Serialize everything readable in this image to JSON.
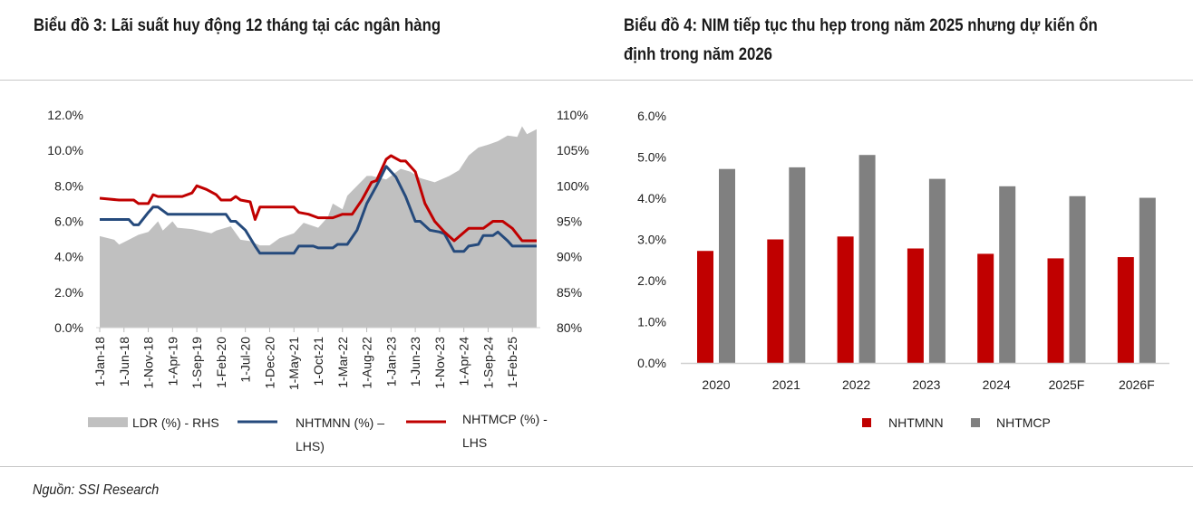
{
  "left_title": "Biểu đồ 3: Lãi suất huy động 12 tháng tại các ngân hàng",
  "right_title_line1": "Biểu đồ 4: NIM tiếp tục thu hẹp trong năm 2025 nhưng dự kiến ổn",
  "right_title_line2": "định trong năm 2026",
  "source": "Nguồn: SSI Research",
  "chart_data": [
    {
      "type": "line",
      "title": "Biểu đồ 3: Lãi suất huy động 12 tháng tại các ngân hàng",
      "x_tick_labels": [
        "1-Jan-18",
        "1-Jun-18",
        "1-Nov-18",
        "1-Apr-19",
        "1-Sep-19",
        "1-Feb-20",
        "1-Jul-20",
        "1-Dec-20",
        "1-May-21",
        "1-Oct-21",
        "1-Mar-22",
        "1-Aug-22",
        "1-Jan-23",
        "1-Jun-23",
        "1-Nov-23",
        "1-Apr-24",
        "1-Sep-24",
        "1-Feb-25"
      ],
      "x_range": [
        "2018-01",
        "2025-07"
      ],
      "y_left": {
        "range": [
          0,
          12
        ],
        "ticks": [
          "0.0%",
          "2.0%",
          "4.0%",
          "6.0%",
          "8.0%",
          "10.0%",
          "12.0%"
        ]
      },
      "y_right": {
        "range": [
          80,
          110
        ],
        "ticks": [
          "80%",
          "85%",
          "90%",
          "95%",
          "100%",
          "105%",
          "110%"
        ]
      },
      "grid": false,
      "legend_position": "bottom",
      "series": [
        {
          "name": "LDR (%) - RHS",
          "legend_label": "LDR (%) - RHS",
          "axis": "right",
          "style": "area",
          "color": "#c0c0c0",
          "points": [
            [
              "2018-01",
              92.9
            ],
            [
              "2018-04",
              92.4
            ],
            [
              "2018-05",
              91.7
            ],
            [
              "2018-07",
              92.4
            ],
            [
              "2018-09",
              93.1
            ],
            [
              "2018-11",
              93.5
            ],
            [
              "2019-01",
              95.0
            ],
            [
              "2019-02",
              93.7
            ],
            [
              "2019-04",
              95.0
            ],
            [
              "2019-05",
              94.1
            ],
            [
              "2019-08",
              93.9
            ],
            [
              "2019-12",
              93.3
            ],
            [
              "2020-01",
              93.7
            ],
            [
              "2020-04",
              94.3
            ],
            [
              "2020-06",
              92.4
            ],
            [
              "2020-08",
              92.2
            ],
            [
              "2020-10",
              91.6
            ],
            [
              "2020-12",
              91.6
            ],
            [
              "2021-02",
              92.6
            ],
            [
              "2021-05",
              93.3
            ],
            [
              "2021-07",
              94.8
            ],
            [
              "2021-10",
              94.1
            ],
            [
              "2021-12",
              95.6
            ],
            [
              "2022-01",
              97.5
            ],
            [
              "2022-03",
              96.7
            ],
            [
              "2022-04",
              98.6
            ],
            [
              "2022-08",
              101.4
            ],
            [
              "2022-09",
              101.4
            ],
            [
              "2022-12",
              100.9
            ],
            [
              "2023-03",
              102.4
            ],
            [
              "2023-05",
              102.0
            ],
            [
              "2023-07",
              101.1
            ],
            [
              "2023-10",
              100.5
            ],
            [
              "2024-01",
              101.4
            ],
            [
              "2024-03",
              102.2
            ],
            [
              "2024-05",
              104.3
            ],
            [
              "2024-07",
              105.4
            ],
            [
              "2024-09",
              105.8
            ],
            [
              "2024-11",
              106.3
            ],
            [
              "2025-01",
              107.1
            ],
            [
              "2025-03",
              106.9
            ],
            [
              "2025-04",
              108.4
            ],
            [
              "2025-05",
              107.3
            ],
            [
              "2025-07",
              108.0
            ]
          ]
        },
        {
          "name": "NHTMNN (%) – LHS)",
          "legend_label_line1": "NHTMNN (%) –",
          "legend_label_line2": "LHS)",
          "axis": "left",
          "style": "line",
          "color": "#254a7c",
          "points": [
            [
              "2018-01",
              6.1
            ],
            [
              "2018-07",
              6.1
            ],
            [
              "2018-08",
              5.8
            ],
            [
              "2018-09",
              5.8
            ],
            [
              "2018-11",
              6.5
            ],
            [
              "2018-12",
              6.8
            ],
            [
              "2019-01",
              6.8
            ],
            [
              "2019-03",
              6.4
            ],
            [
              "2020-03",
              6.4
            ],
            [
              "2020-04",
              6.0
            ],
            [
              "2020-05",
              6.0
            ],
            [
              "2020-07",
              5.5
            ],
            [
              "2020-09",
              4.6
            ],
            [
              "2020-10",
              4.2
            ],
            [
              "2021-05",
              4.2
            ],
            [
              "2021-06",
              4.6
            ],
            [
              "2021-09",
              4.6
            ],
            [
              "2021-10",
              4.5
            ],
            [
              "2022-01",
              4.5
            ],
            [
              "2022-02",
              4.7
            ],
            [
              "2022-04",
              4.7
            ],
            [
              "2022-06",
              5.5
            ],
            [
              "2022-08",
              7.0
            ],
            [
              "2022-10",
              8.0
            ],
            [
              "2022-12",
              9.1
            ],
            [
              "2023-02",
              8.5
            ],
            [
              "2023-04",
              7.4
            ],
            [
              "2023-06",
              6.0
            ],
            [
              "2023-07",
              6.0
            ],
            [
              "2023-09",
              5.5
            ],
            [
              "2023-11",
              5.4
            ],
            [
              "2023-12",
              5.3
            ],
            [
              "2024-02",
              4.3
            ],
            [
              "2024-04",
              4.3
            ],
            [
              "2024-05",
              4.6
            ],
            [
              "2024-07",
              4.7
            ],
            [
              "2024-08",
              5.2
            ],
            [
              "2024-10",
              5.2
            ],
            [
              "2024-11",
              5.4
            ],
            [
              "2025-01",
              4.9
            ],
            [
              "2025-02",
              4.6
            ],
            [
              "2025-07",
              4.6
            ]
          ]
        },
        {
          "name": "NHTMCP (%) - LHS",
          "legend_label_line1": "NHTMCP (%) -",
          "legend_label_line2": "LHS",
          "axis": "left",
          "style": "line",
          "color": "#c00000",
          "points": [
            [
              "2018-01",
              7.3
            ],
            [
              "2018-05",
              7.2
            ],
            [
              "2018-08",
              7.2
            ],
            [
              "2018-09",
              7.0
            ],
            [
              "2018-11",
              7.0
            ],
            [
              "2018-12",
              7.5
            ],
            [
              "2019-01",
              7.4
            ],
            [
              "2019-06",
              7.4
            ],
            [
              "2019-08",
              7.6
            ],
            [
              "2019-09",
              8.0
            ],
            [
              "2019-11",
              7.8
            ],
            [
              "2020-01",
              7.5
            ],
            [
              "2020-02",
              7.2
            ],
            [
              "2020-04",
              7.2
            ],
            [
              "2020-05",
              7.4
            ],
            [
              "2020-06",
              7.2
            ],
            [
              "2020-08",
              7.1
            ],
            [
              "2020-09",
              6.1
            ],
            [
              "2020-10",
              6.8
            ],
            [
              "2021-05",
              6.8
            ],
            [
              "2021-06",
              6.5
            ],
            [
              "2021-08",
              6.4
            ],
            [
              "2021-10",
              6.2
            ],
            [
              "2022-01",
              6.2
            ],
            [
              "2022-03",
              6.4
            ],
            [
              "2022-05",
              6.4
            ],
            [
              "2022-07",
              7.2
            ],
            [
              "2022-09",
              8.2
            ],
            [
              "2022-10",
              8.3
            ],
            [
              "2022-12",
              9.5
            ],
            [
              "2023-01",
              9.7
            ],
            [
              "2023-03",
              9.4
            ],
            [
              "2023-04",
              9.4
            ],
            [
              "2023-06",
              8.8
            ],
            [
              "2023-08",
              7.0
            ],
            [
              "2023-10",
              6.0
            ],
            [
              "2023-12",
              5.4
            ],
            [
              "2024-02",
              4.9
            ],
            [
              "2024-05",
              5.6
            ],
            [
              "2024-08",
              5.6
            ],
            [
              "2024-10",
              6.0
            ],
            [
              "2024-12",
              6.0
            ],
            [
              "2025-02",
              5.6
            ],
            [
              "2025-04",
              4.9
            ],
            [
              "2025-07",
              4.9
            ]
          ]
        }
      ]
    },
    {
      "type": "bar",
      "title": "Biểu đồ 4: NIM tiếp tục thu hẹp trong năm 2025 nhưng dự kiến ổn định trong năm 2026",
      "categories": [
        "2020",
        "2021",
        "2022",
        "2023",
        "2024",
        "2025F",
        "2026F"
      ],
      "ylim": [
        0,
        6
      ],
      "y_ticks": [
        "0.0%",
        "1.0%",
        "2.0%",
        "3.0%",
        "4.0%",
        "5.0%",
        "6.0%"
      ],
      "grid": false,
      "legend_position": "bottom",
      "series": [
        {
          "name": "NHTMNN",
          "color": "#c00000",
          "values": [
            2.72,
            3.0,
            3.07,
            2.78,
            2.65,
            2.54,
            2.57
          ]
        },
        {
          "name": "NHTMCP",
          "color": "#808080",
          "values": [
            4.71,
            4.75,
            5.05,
            4.47,
            4.29,
            4.05,
            4.01
          ]
        }
      ]
    }
  ]
}
